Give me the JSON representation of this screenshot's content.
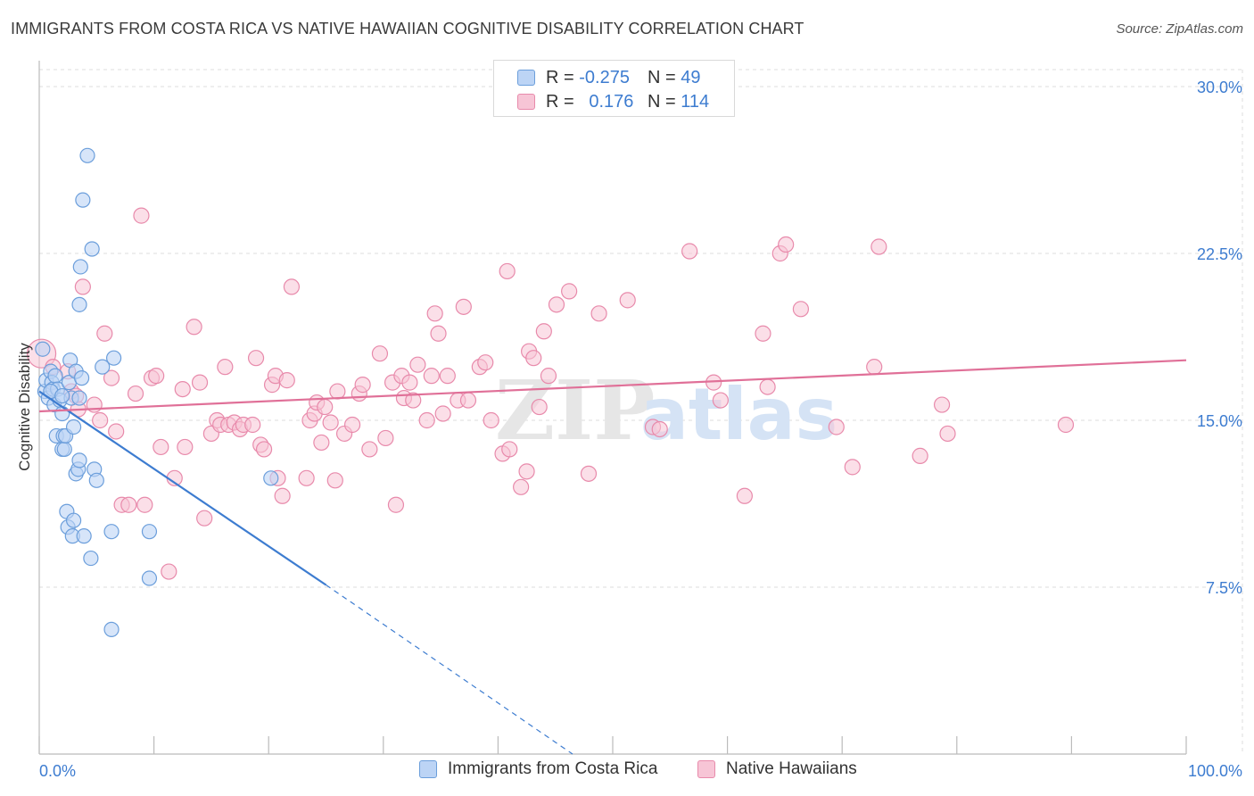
{
  "title": "IMMIGRANTS FROM COSTA RICA VS NATIVE HAWAIIAN COGNITIVE DISABILITY CORRELATION CHART",
  "source": "Source: ZipAtlas.com",
  "legend": {
    "rows": [
      {
        "r_label": "R = ",
        "r_value": "-0.275",
        "n_label": "N = ",
        "n_value": "49"
      },
      {
        "r_label": "R = ",
        "r_value": "0.176",
        "n_label": "N = ",
        "n_value": "114"
      }
    ]
  },
  "colors": {
    "blue": "#3d7cd0",
    "blue_fill": "#bcd4f5",
    "blue_stroke": "#6b9edb",
    "pink": "#e07098",
    "pink_fill": "#f7c5d6",
    "pink_stroke": "#e88aab",
    "grid": "#dddddd",
    "tick_label": "#3d7cd0"
  },
  "watermark": {
    "zip": "ZIP",
    "atlas": "atlas"
  },
  "chart_data": {
    "type": "scatter",
    "title": "IMMIGRANTS FROM COSTA RICA VS NATIVE HAWAIIAN COGNITIVE DISABILITY CORRELATION CHART",
    "xlabel": "",
    "ylabel": "Cognitive Disability",
    "xlim": [
      0,
      100
    ],
    "ylim": [
      0,
      30
    ],
    "x_tick_labels": [
      {
        "value": 0,
        "label": "0.0%"
      },
      {
        "value": 100,
        "label": "100.0%"
      }
    ],
    "y_tick_labels": [
      {
        "value": 7.5,
        "label": "7.5%"
      },
      {
        "value": 15,
        "label": "15.0%"
      },
      {
        "value": 22.5,
        "label": "22.5%"
      },
      {
        "value": 30,
        "label": "30.0%"
      }
    ],
    "legend_position": "bottom",
    "series": [
      {
        "name": "Immigrants from Costa Rica",
        "color": "#3d7cd0",
        "r": -0.275,
        "n": 49,
        "trend": {
          "x0": 0,
          "y0": 16.3,
          "x1": 25,
          "y1": 7.6,
          "dash_to_x": 46.5,
          "dash_to_y": 0
        },
        "points": [
          [
            0.3,
            18.2
          ],
          [
            0.5,
            16.3
          ],
          [
            0.6,
            16.8
          ],
          [
            0.8,
            16.0
          ],
          [
            1.0,
            17.2
          ],
          [
            1.1,
            16.7
          ],
          [
            1.2,
            16.4
          ],
          [
            1.3,
            15.7
          ],
          [
            1.4,
            17.0
          ],
          [
            1.5,
            14.3
          ],
          [
            1.6,
            16.4
          ],
          [
            1.8,
            15.9
          ],
          [
            2.0,
            15.3
          ],
          [
            2.0,
            13.7
          ],
          [
            2.1,
            14.3
          ],
          [
            2.2,
            13.7
          ],
          [
            2.3,
            14.3
          ],
          [
            2.4,
            10.9
          ],
          [
            2.5,
            10.2
          ],
          [
            2.6,
            16.7
          ],
          [
            2.7,
            17.7
          ],
          [
            2.8,
            16.0
          ],
          [
            2.9,
            9.8
          ],
          [
            3.0,
            10.5
          ],
          [
            3.0,
            14.7
          ],
          [
            3.2,
            17.2
          ],
          [
            3.2,
            12.6
          ],
          [
            3.4,
            12.8
          ],
          [
            3.5,
            13.2
          ],
          [
            3.5,
            16.0
          ],
          [
            3.5,
            20.2
          ],
          [
            3.6,
            21.9
          ],
          [
            3.7,
            16.9
          ],
          [
            3.8,
            24.9
          ],
          [
            3.9,
            9.8
          ],
          [
            4.2,
            26.9
          ],
          [
            4.5,
            8.8
          ],
          [
            4.6,
            22.7
          ],
          [
            4.8,
            12.8
          ],
          [
            5.0,
            12.3
          ],
          [
            5.5,
            17.4
          ],
          [
            6.3,
            10.0
          ],
          [
            6.5,
            17.8
          ],
          [
            9.6,
            10.0
          ],
          [
            9.6,
            7.9
          ],
          [
            20.2,
            12.4
          ],
          [
            6.3,
            5.6
          ],
          [
            1.0,
            16.3
          ],
          [
            2.0,
            16.1
          ]
        ]
      },
      {
        "name": "Native Hawaiians",
        "color": "#e07098",
        "r": 0.176,
        "n": 114,
        "trend": {
          "x0": 0,
          "y0": 15.4,
          "x1": 100,
          "y1": 17.7
        },
        "points": [
          [
            0.2,
            18.0
          ],
          [
            1.2,
            17.4
          ],
          [
            2.5,
            17.2
          ],
          [
            2.8,
            16.3
          ],
          [
            3.2,
            16.1
          ],
          [
            3.4,
            15.5
          ],
          [
            3.8,
            21.0
          ],
          [
            4.8,
            15.7
          ],
          [
            5.3,
            15.0
          ],
          [
            5.7,
            18.9
          ],
          [
            6.3,
            16.9
          ],
          [
            6.7,
            14.5
          ],
          [
            7.2,
            11.2
          ],
          [
            7.8,
            11.2
          ],
          [
            8.4,
            16.2
          ],
          [
            8.9,
            24.2
          ],
          [
            9.2,
            11.2
          ],
          [
            9.8,
            16.9
          ],
          [
            10.2,
            17.0
          ],
          [
            10.6,
            13.8
          ],
          [
            11.3,
            8.2
          ],
          [
            11.8,
            12.4
          ],
          [
            12.5,
            16.4
          ],
          [
            12.7,
            13.8
          ],
          [
            13.5,
            19.2
          ],
          [
            14.0,
            16.7
          ],
          [
            14.4,
            10.6
          ],
          [
            15.0,
            14.4
          ],
          [
            15.5,
            15.0
          ],
          [
            15.8,
            14.8
          ],
          [
            16.2,
            17.4
          ],
          [
            16.5,
            14.8
          ],
          [
            17.0,
            14.9
          ],
          [
            17.5,
            14.6
          ],
          [
            17.8,
            14.8
          ],
          [
            18.6,
            14.8
          ],
          [
            18.9,
            17.8
          ],
          [
            19.3,
            13.9
          ],
          [
            19.6,
            13.7
          ],
          [
            20.3,
            16.6
          ],
          [
            20.6,
            17.0
          ],
          [
            20.8,
            12.4
          ],
          [
            21.2,
            11.6
          ],
          [
            21.6,
            16.8
          ],
          [
            22.0,
            21.0
          ],
          [
            23.3,
            12.4
          ],
          [
            23.6,
            15.0
          ],
          [
            24.0,
            15.3
          ],
          [
            24.2,
            15.8
          ],
          [
            24.6,
            14.0
          ],
          [
            24.9,
            15.6
          ],
          [
            25.4,
            14.9
          ],
          [
            25.8,
            12.3
          ],
          [
            26.0,
            16.3
          ],
          [
            26.6,
            14.4
          ],
          [
            27.3,
            14.8
          ],
          [
            27.9,
            16.2
          ],
          [
            28.2,
            16.6
          ],
          [
            28.8,
            13.7
          ],
          [
            29.7,
            18.0
          ],
          [
            30.2,
            14.2
          ],
          [
            30.8,
            16.7
          ],
          [
            31.1,
            11.2
          ],
          [
            31.6,
            17.0
          ],
          [
            31.8,
            16.0
          ],
          [
            32.3,
            16.7
          ],
          [
            32.6,
            15.9
          ],
          [
            33.0,
            17.5
          ],
          [
            33.8,
            15.0
          ],
          [
            34.2,
            17.0
          ],
          [
            34.5,
            19.8
          ],
          [
            34.8,
            18.9
          ],
          [
            35.2,
            15.3
          ],
          [
            35.6,
            17.0
          ],
          [
            36.5,
            15.9
          ],
          [
            37.0,
            20.1
          ],
          [
            37.4,
            15.9
          ],
          [
            38.4,
            17.4
          ],
          [
            38.9,
            17.6
          ],
          [
            39.4,
            15.0
          ],
          [
            40.4,
            13.5
          ],
          [
            40.8,
            21.7
          ],
          [
            41.0,
            13.7
          ],
          [
            42.0,
            12.0
          ],
          [
            42.5,
            12.7
          ],
          [
            42.7,
            18.1
          ],
          [
            43.1,
            17.8
          ],
          [
            43.6,
            15.6
          ],
          [
            44.0,
            19.0
          ],
          [
            44.4,
            17.0
          ],
          [
            45.1,
            20.2
          ],
          [
            46.2,
            20.8
          ],
          [
            47.9,
            12.6
          ],
          [
            48.8,
            19.8
          ],
          [
            51.3,
            20.4
          ],
          [
            53.5,
            14.7
          ],
          [
            54.1,
            14.6
          ],
          [
            56.7,
            22.6
          ],
          [
            58.8,
            16.7
          ],
          [
            59.4,
            15.9
          ],
          [
            61.5,
            11.6
          ],
          [
            63.1,
            18.9
          ],
          [
            63.5,
            16.5
          ],
          [
            64.6,
            22.5
          ],
          [
            65.1,
            22.9
          ],
          [
            66.4,
            20.0
          ],
          [
            69.5,
            14.7
          ],
          [
            70.9,
            12.9
          ],
          [
            72.8,
            17.4
          ],
          [
            73.2,
            22.8
          ],
          [
            76.8,
            13.4
          ],
          [
            78.7,
            15.7
          ],
          [
            79.2,
            14.4
          ],
          [
            89.5,
            14.8
          ]
        ]
      }
    ]
  },
  "bottom_legend": [
    {
      "label": "Immigrants from Costa Rica"
    },
    {
      "label": "Native Hawaiians"
    }
  ]
}
